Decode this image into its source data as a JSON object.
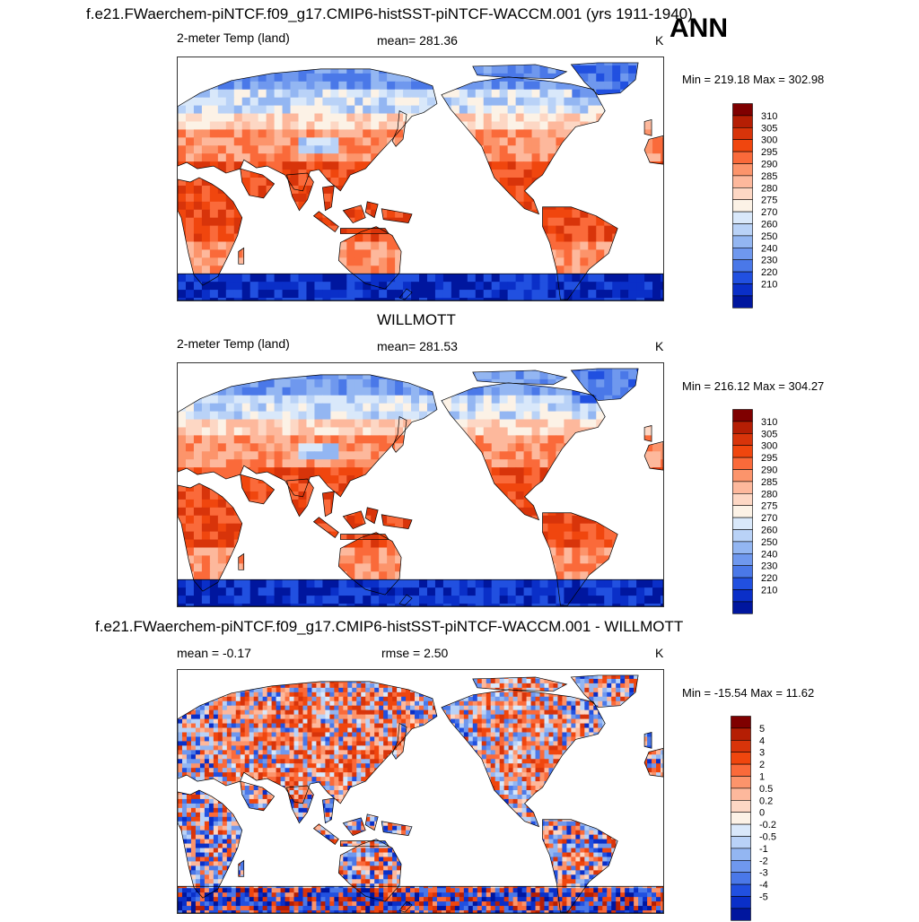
{
  "season_label": "ANN",
  "panels": [
    {
      "title": "f.e21.FWaerchem-piNTCF.f09_g17.CMIP6-histSST-piNTCF-WACCM.001 (yrs 1911-1940)",
      "left_label": "2-meter Temp (land)",
      "center_label": "mean= 281.36",
      "units": "K",
      "minmax": "Min = 219.18 Max = 302.98",
      "palette": "abs",
      "colorbar_labels": [
        "310",
        "305",
        "300",
        "295",
        "290",
        "285",
        "280",
        "275",
        "270",
        "260",
        "250",
        "240",
        "230",
        "220",
        "210"
      ]
    },
    {
      "title": "WILLMOTT",
      "left_label": "2-meter Temp (land)",
      "center_label": "mean= 281.53",
      "units": "K",
      "minmax": "Min = 216.12 Max = 304.27",
      "palette": "abs",
      "colorbar_labels": [
        "310",
        "305",
        "300",
        "295",
        "290",
        "285",
        "280",
        "275",
        "270",
        "260",
        "250",
        "240",
        "230",
        "220",
        "210"
      ]
    },
    {
      "title": "f.e21.FWaerchem-piNTCF.f09_g17.CMIP6-histSST-piNTCF-WACCM.001 - WILLMOTT",
      "left_label": "mean =  -0.17",
      "center_label": "rmse =   2.50",
      "units": "K",
      "minmax": "Min = -15.54 Max =  11.62",
      "palette": "diff",
      "colorbar_labels": [
        "5",
        "4",
        "3",
        "2",
        "1",
        "0.5",
        "0.2",
        "0",
        "-0.2",
        "-0.5",
        "-1",
        "-2",
        "-3",
        "-4",
        "-5"
      ]
    }
  ],
  "colors": {
    "abs": [
      "#7f0000",
      "#b51e04",
      "#d8340a",
      "#f0460e",
      "#fa6a3a",
      "#fc946b",
      "#fdb89c",
      "#fdd7c4",
      "#fcf2e6",
      "#d9e8fa",
      "#b9d2f7",
      "#93b6f2",
      "#6f98ee",
      "#4a78e8",
      "#2150e0",
      "#0a2fc8",
      "#00169e"
    ],
    "diff": [
      "#7f0000",
      "#b51e04",
      "#d8340a",
      "#f0460e",
      "#fa6a3a",
      "#fc946b",
      "#fdb89c",
      "#fdd7c4",
      "#fcf2e6",
      "#d9e8fa",
      "#b9d2f7",
      "#93b6f2",
      "#6f98ee",
      "#4a78e8",
      "#2150e0",
      "#0a2fc8",
      "#00169e"
    ]
  }
}
